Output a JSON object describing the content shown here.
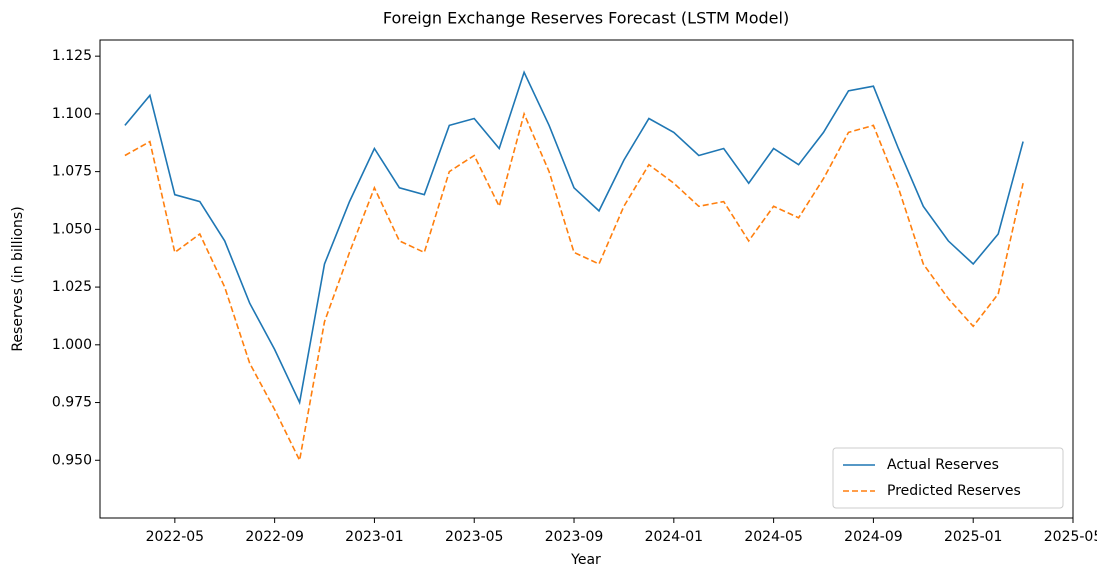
{
  "chart_data": {
    "type": "line",
    "title": "Foreign Exchange Reserves Forecast (LSTM Model)",
    "xlabel": "Year",
    "ylabel": "Reserves (in billions)",
    "x": [
      "2022-03",
      "2022-04",
      "2022-05",
      "2022-06",
      "2022-07",
      "2022-08",
      "2022-09",
      "2022-10",
      "2022-11",
      "2022-12",
      "2023-01",
      "2023-02",
      "2023-03",
      "2023-04",
      "2023-05",
      "2023-06",
      "2023-07",
      "2023-08",
      "2023-09",
      "2023-10",
      "2023-11",
      "2023-12",
      "2024-01",
      "2024-02",
      "2024-03",
      "2024-04",
      "2024-05",
      "2024-06",
      "2024-07",
      "2024-08",
      "2024-09",
      "2024-10",
      "2024-11",
      "2024-12",
      "2025-01",
      "2025-02",
      "2025-03"
    ],
    "series": [
      {
        "name": "Actual Reserves",
        "color": "#1f77b4",
        "dash": "solid",
        "values": [
          1.095,
          1.108,
          1.065,
          1.062,
          1.045,
          1.018,
          0.998,
          0.975,
          1.035,
          1.062,
          1.085,
          1.068,
          1.065,
          1.095,
          1.098,
          1.085,
          1.118,
          1.095,
          1.068,
          1.058,
          1.08,
          1.098,
          1.092,
          1.082,
          1.085,
          1.07,
          1.085,
          1.078,
          1.092,
          1.11,
          1.112,
          1.085,
          1.06,
          1.045,
          1.035,
          1.048,
          1.088
        ]
      },
      {
        "name": "Predicted Reserves",
        "color": "#ff7f0e",
        "dash": "dashed",
        "values": [
          1.082,
          1.088,
          1.04,
          1.048,
          1.025,
          0.992,
          0.972,
          0.95,
          1.01,
          1.04,
          1.068,
          1.045,
          1.04,
          1.075,
          1.082,
          1.06,
          1.1,
          1.075,
          1.04,
          1.035,
          1.06,
          1.078,
          1.07,
          1.06,
          1.062,
          1.045,
          1.06,
          1.055,
          1.072,
          1.092,
          1.095,
          1.068,
          1.035,
          1.02,
          1.008,
          1.022,
          1.07
        ]
      }
    ],
    "xlim": [
      "2022-02",
      "2025-05"
    ],
    "xticks": [
      "2022-05",
      "2022-09",
      "2023-01",
      "2023-05",
      "2023-09",
      "2024-01",
      "2024-05",
      "2024-09",
      "2025-01",
      "2025-05"
    ],
    "ylim": [
      0.925,
      1.132
    ],
    "yticks": [
      {
        "value": 0.95,
        "label": "0.950"
      },
      0.975,
      {
        "value": 1.0,
        "label": "1.000"
      },
      1.025,
      {
        "value": 1.05,
        "label": "1.050"
      },
      1.075,
      {
        "value": 1.1,
        "label": "1.100"
      },
      1.125
    ],
    "legend": "lower right",
    "grid": false
  }
}
